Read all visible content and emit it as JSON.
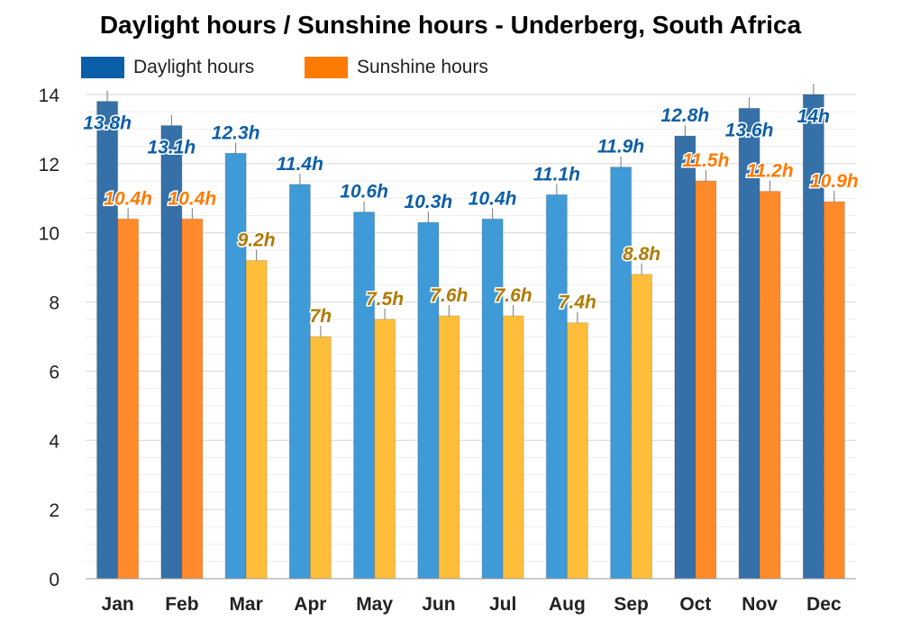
{
  "title": "Daylight hours / Sunshine hours - Underberg, South Africa",
  "legend": [
    {
      "name": "Daylight hours",
      "color": "#0b5ea8"
    },
    {
      "name": "Sunshine hours",
      "color": "#ff7a00"
    }
  ],
  "chart_data": {
    "type": "bar",
    "title": "Daylight hours / Sunshine hours - Underberg, South Africa",
    "categories": [
      "Jan",
      "Feb",
      "Mar",
      "Apr",
      "May",
      "Jun",
      "Jul",
      "Aug",
      "Sep",
      "Oct",
      "Nov",
      "Dec"
    ],
    "series": [
      {
        "name": "Daylight hours",
        "values": [
          13.8,
          13.1,
          12.3,
          11.4,
          10.6,
          10.3,
          10.4,
          11.1,
          11.9,
          12.8,
          13.6,
          14
        ],
        "labels": [
          "13.8h",
          "13.1h",
          "12.3h",
          "11.4h",
          "10.6h",
          "10.3h",
          "10.4h",
          "11.1h",
          "11.9h",
          "12.8h",
          "13.6h",
          "14h"
        ]
      },
      {
        "name": "Sunshine hours",
        "values": [
          10.4,
          10.4,
          9.2,
          7,
          7.5,
          7.6,
          7.6,
          7.4,
          8.8,
          11.5,
          11.2,
          10.9
        ],
        "labels": [
          "10.4h",
          "10.4h",
          "9.2h",
          "7h",
          "7.5h",
          "7.6h",
          "7.6h",
          "7.4h",
          "8.8h",
          "11.5h",
          "11.2h",
          "10.9h"
        ]
      }
    ],
    "ylim": [
      0,
      14
    ],
    "yticks": [
      "0",
      "2",
      "4",
      "6",
      "8",
      "10",
      "12",
      "14"
    ],
    "grid": true,
    "legend_position": "top-left",
    "season_colors": {
      "summer": {
        "daylight": "#3571a8",
        "sunshine": "#ff8a2a",
        "label_daylight": "#0b5ea8",
        "label_sunshine": "#ff7a00"
      },
      "mild": {
        "daylight": "#3f9ad8",
        "sunshine": "#ffbe3a",
        "label_daylight": "#0b5ea8",
        "label_sunshine": "#b07a00"
      }
    },
    "month_season": [
      "summer",
      "summer",
      "mild",
      "mild",
      "mild",
      "mild",
      "mild",
      "mild",
      "mild",
      "summer",
      "summer",
      "summer"
    ]
  }
}
